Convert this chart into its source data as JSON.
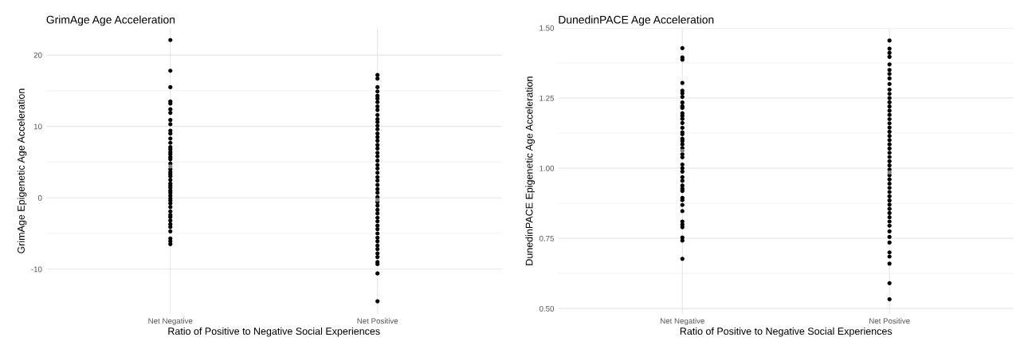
{
  "chart_data": [
    {
      "type": "scatter",
      "title": "GrimAge Age Acceleration",
      "xlabel": "Ratio of Positive to Negative Social Experiences",
      "ylabel": "GrimAge Epigenetic Age Acceleration",
      "categories": [
        "Net Negative",
        "Net Positive"
      ],
      "ylim": [
        -16.3,
        23.8
      ],
      "yticks": [
        -10,
        0,
        10,
        20
      ],
      "grid": true,
      "marker": "circle",
      "series": [
        {
          "color": "#000000",
          "x": [
            "Net Negative",
            "Net Negative",
            "Net Negative",
            "Net Negative",
            "Net Negative",
            "Net Negative",
            "Net Negative",
            "Net Negative",
            "Net Negative",
            "Net Negative",
            "Net Negative",
            "Net Negative",
            "Net Negative",
            "Net Negative",
            "Net Negative",
            "Net Negative",
            "Net Negative",
            "Net Negative",
            "Net Negative",
            "Net Negative",
            "Net Negative",
            "Net Negative",
            "Net Negative",
            "Net Negative",
            "Net Negative",
            "Net Negative",
            "Net Negative",
            "Net Negative",
            "Net Negative",
            "Net Negative",
            "Net Negative",
            "Net Negative",
            "Net Negative",
            "Net Negative",
            "Net Negative",
            "Net Negative",
            "Net Negative",
            "Net Negative",
            "Net Negative",
            "Net Negative",
            "Net Negative",
            "Net Negative",
            "Net Negative",
            "Net Negative",
            "Net Negative"
          ],
          "values": [
            22.1,
            17.8,
            15.5,
            13.5,
            13.2,
            12.4,
            11.9,
            10.9,
            10.3,
            9.4,
            9.0,
            8.3,
            7.7,
            7.1,
            6.8,
            6.4,
            6.1,
            5.7,
            5.4,
            4.8,
            4.0,
            3.6,
            3.3,
            3.0,
            2.5,
            2.0,
            1.7,
            1.4,
            1.0,
            0.7,
            0.3,
            -0.1,
            -0.4,
            -0.8,
            -1.3,
            -1.9,
            -2.4,
            -2.7,
            -3.2,
            -3.7,
            -4.1,
            -4.7,
            -5.7,
            -6.1,
            -6.5
          ]
        },
        {
          "color": "#000000",
          "x": [
            "Net Positive",
            "Net Positive",
            "Net Positive",
            "Net Positive",
            "Net Positive",
            "Net Positive",
            "Net Positive",
            "Net Positive",
            "Net Positive",
            "Net Positive",
            "Net Positive",
            "Net Positive",
            "Net Positive",
            "Net Positive",
            "Net Positive",
            "Net Positive",
            "Net Positive",
            "Net Positive",
            "Net Positive",
            "Net Positive",
            "Net Positive",
            "Net Positive",
            "Net Positive",
            "Net Positive",
            "Net Positive",
            "Net Positive",
            "Net Positive",
            "Net Positive",
            "Net Positive",
            "Net Positive",
            "Net Positive",
            "Net Positive",
            "Net Positive",
            "Net Positive",
            "Net Positive",
            "Net Positive",
            "Net Positive",
            "Net Positive",
            "Net Positive",
            "Net Positive",
            "Net Positive",
            "Net Positive",
            "Net Positive",
            "Net Positive",
            "Net Positive",
            "Net Positive",
            "Net Positive",
            "Net Positive",
            "Net Positive",
            "Net Positive"
          ],
          "values": [
            17.2,
            16.7,
            15.5,
            14.9,
            14.3,
            13.9,
            13.4,
            12.8,
            12.3,
            11.6,
            11.0,
            10.6,
            10.1,
            9.6,
            9.0,
            8.5,
            8.0,
            7.4,
            6.9,
            6.3,
            5.8,
            5.2,
            4.6,
            4.1,
            3.5,
            2.9,
            2.4,
            1.8,
            1.2,
            0.7,
            0.1,
            -0.6,
            -1.1,
            -1.7,
            -2.2,
            -2.8,
            -3.3,
            -3.9,
            -4.4,
            -5.0,
            -5.6,
            -6.1,
            -6.7,
            -7.2,
            -7.8,
            -8.3,
            -9.0,
            -9.3,
            -10.6,
            -14.5
          ]
        },
        {
          "color": "#808080",
          "x": [
            "Net Negative",
            "Net Positive"
          ],
          "values": [
            4.4,
            -0.3
          ]
        }
      ]
    },
    {
      "type": "scatter",
      "title": "DunedinPACE Age Acceleration",
      "xlabel": "Ratio of Positive to Negative Social Experiences",
      "ylabel": "DunedinPACE Epigenetic Age Acceleration",
      "categories": [
        "Net Negative",
        "Net Positive"
      ],
      "ylim": [
        0.48,
        1.5
      ],
      "yticks": [
        {
          "value": 0.5,
          "label": "0.50"
        },
        {
          "value": 0.75,
          "label": "0.75"
        },
        {
          "value": 1.0,
          "label": "1.00"
        },
        {
          "value": 1.25,
          "label": "1.25"
        },
        {
          "value": 1.5,
          "label": "1.50"
        }
      ],
      "grid": true,
      "marker": "circle",
      "series": [
        {
          "color": "#000000",
          "x": [
            "Net Negative",
            "Net Negative",
            "Net Negative",
            "Net Negative",
            "Net Negative",
            "Net Negative",
            "Net Negative",
            "Net Negative",
            "Net Negative",
            "Net Negative",
            "Net Negative",
            "Net Negative",
            "Net Negative",
            "Net Negative",
            "Net Negative",
            "Net Negative",
            "Net Negative",
            "Net Negative",
            "Net Negative",
            "Net Negative",
            "Net Negative",
            "Net Negative",
            "Net Negative",
            "Net Negative",
            "Net Negative",
            "Net Negative",
            "Net Negative",
            "Net Negative",
            "Net Negative",
            "Net Negative",
            "Net Negative",
            "Net Negative",
            "Net Negative",
            "Net Negative",
            "Net Negative",
            "Net Negative",
            "Net Negative",
            "Net Negative",
            "Net Negative",
            "Net Negative",
            "Net Negative",
            "Net Negative"
          ],
          "values": [
            1.428,
            1.395,
            1.387,
            1.304,
            1.276,
            1.267,
            1.254,
            1.234,
            1.221,
            1.215,
            1.196,
            1.187,
            1.176,
            1.161,
            1.144,
            1.128,
            1.121,
            1.105,
            1.097,
            1.085,
            1.072,
            1.05,
            1.039,
            1.013,
            1.0,
            0.988,
            0.968,
            0.955,
            null,
            0.938,
            0.927,
            0.919,
            0.894,
            0.886,
            0.869,
            0.847,
            0.81,
            0.799,
            0.79,
            0.753,
            0.742,
            0.677
          ]
        },
        {
          "color": "#000000",
          "x": [
            "Net Positive",
            "Net Positive",
            "Net Positive",
            "Net Positive",
            "Net Positive",
            "Net Positive",
            "Net Positive",
            "Net Positive",
            "Net Positive",
            "Net Positive",
            "Net Positive",
            "Net Positive",
            "Net Positive",
            "Net Positive",
            "Net Positive",
            "Net Positive",
            "Net Positive",
            "Net Positive",
            "Net Positive",
            "Net Positive",
            "Net Positive",
            "Net Positive",
            "Net Positive",
            "Net Positive",
            "Net Positive",
            "Net Positive",
            "Net Positive",
            "Net Positive",
            "Net Positive",
            "Net Positive",
            "Net Positive",
            "Net Positive",
            "Net Positive",
            "Net Positive",
            "Net Positive",
            "Net Positive",
            "Net Positive",
            "Net Positive",
            "Net Positive",
            "Net Positive",
            "Net Positive",
            "Net Positive",
            "Net Positive",
            "Net Positive",
            "Net Positive",
            "Net Positive",
            "Net Positive",
            "Net Positive",
            "Net Positive",
            "Net Positive"
          ],
          "values": [
            1.455,
            1.426,
            1.411,
            1.397,
            1.37,
            1.35,
            1.336,
            1.32,
            1.3,
            1.28,
            1.265,
            1.25,
            1.235,
            1.22,
            1.205,
            1.19,
            1.175,
            1.16,
            1.145,
            1.13,
            1.115,
            1.1,
            1.085,
            1.07,
            1.055,
            1.04,
            1.025,
            1.01,
            0.995,
            0.975,
            0.96,
            0.945,
            0.93,
            0.915,
            0.9,
            0.885,
            0.87,
            0.855,
            0.84,
            0.825,
            0.81,
            0.795,
            0.775,
            0.755,
            0.735,
            0.7,
            0.685,
            0.66,
            0.59,
            0.533
          ]
        },
        {
          "color": "#808080",
          "x": [
            "Net Negative",
            "Net Positive"
          ],
          "values": [
            1.062,
            0.985
          ]
        }
      ]
    }
  ]
}
